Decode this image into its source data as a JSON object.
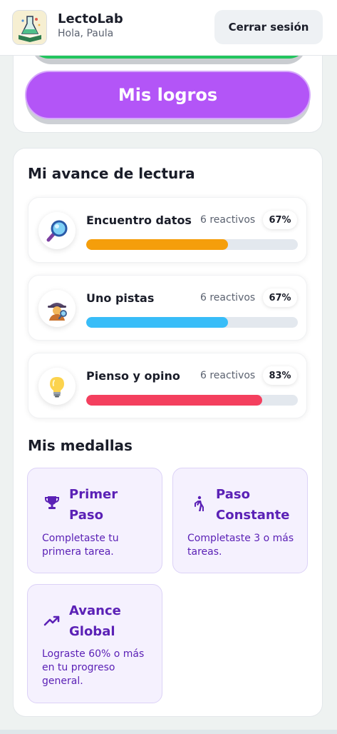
{
  "header": {
    "app_name": "LectoLab",
    "greeting": "Hola, Paula",
    "logout_label": "Cerrar sesión"
  },
  "top_card": {
    "achievements_button": "Mis logros",
    "green_button_color": "#22c55e",
    "purple_button_color": "#b355f7"
  },
  "progress": {
    "title": "Mi avance de lectura",
    "items": [
      {
        "label": "Encuentro datos",
        "count": "6 reactivos",
        "percent_label": "67%",
        "value": 0.67,
        "color": "#f59e0b",
        "icon": "magnifier-icon"
      },
      {
        "label": "Uno pistas",
        "count": "6 reactivos",
        "percent_label": "67%",
        "value": 0.67,
        "color": "#38bdf8",
        "icon": "detective-icon"
      },
      {
        "label": "Pienso y opino",
        "count": "6 reactivos",
        "percent_label": "83%",
        "value": 0.83,
        "color": "#f43f5e",
        "icon": "lightbulb-icon"
      }
    ]
  },
  "medals": {
    "title": "Mis medallas",
    "items": [
      {
        "title_line1": "Primer",
        "title_line2": "Paso",
        "desc_line1": "Completaste tu",
        "desc_line2": "primera tarea.",
        "desc_line3": "",
        "icon": "trophy-icon"
      },
      {
        "title_line1": "Paso",
        "title_line2": "Constante",
        "desc_line1": "Completaste 3 o más",
        "desc_line2": "tareas.",
        "desc_line3": "",
        "icon": "walking-icon"
      },
      {
        "title_line1": "Avance",
        "title_line2": "Global",
        "desc_line1": "Lograste 60% o más",
        "desc_line2": "en tu progreso",
        "desc_line3": "general.",
        "icon": "trending-up-icon"
      }
    ]
  }
}
